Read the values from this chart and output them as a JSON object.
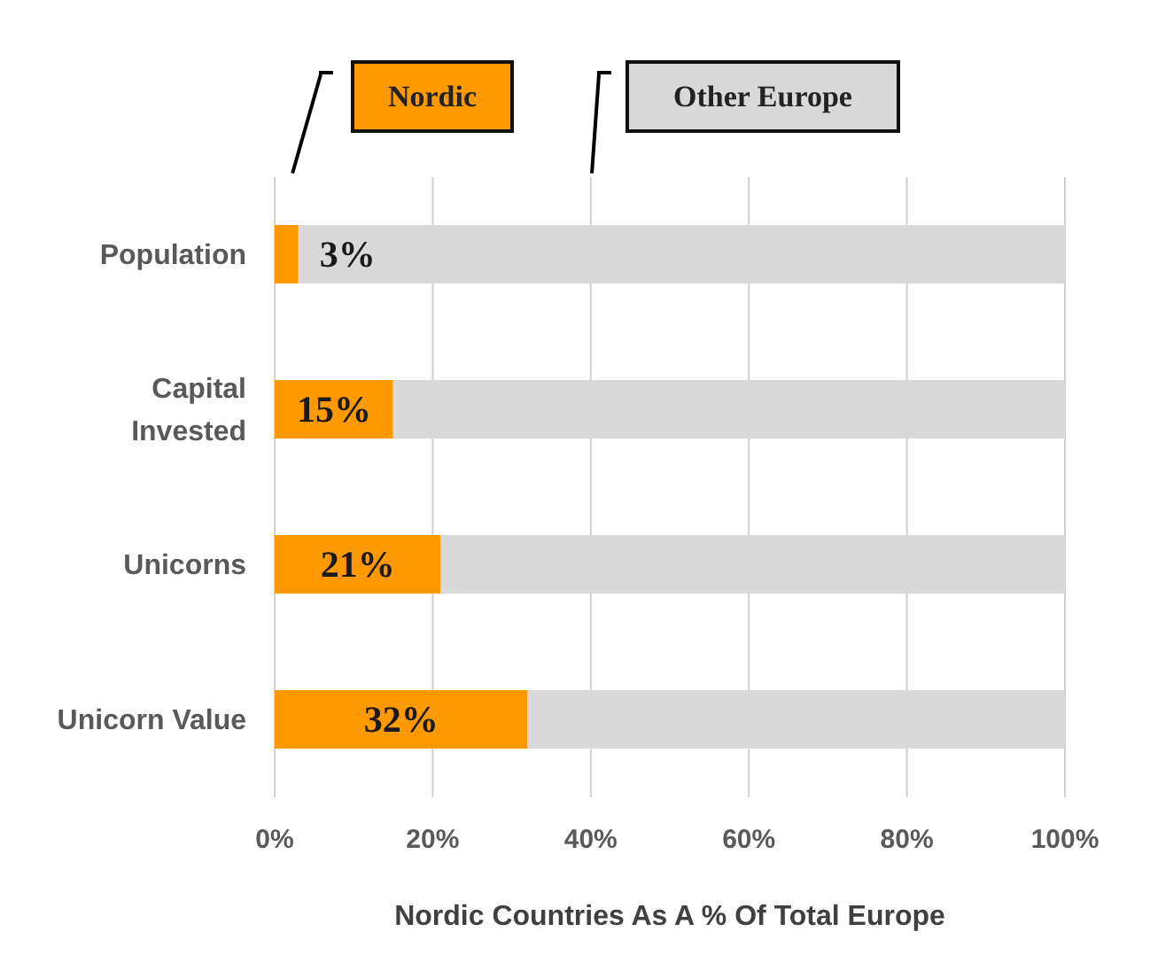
{
  "chart_data": {
    "type": "bar",
    "orientation": "horizontal",
    "stacked": true,
    "xlabel": "Nordic Countries As A % Of Total Europe",
    "categories": [
      "Population",
      "Capital Invested",
      "Unicorns",
      "Unicorn Value"
    ],
    "series": [
      {
        "name": "Nordic",
        "color": "#ff9900",
        "values": [
          3,
          15,
          21,
          32
        ],
        "value_labels": [
          "3%",
          "15%",
          "21%",
          "32%"
        ]
      },
      {
        "name": "Other Europe",
        "color": "#d9d9d9",
        "values": [
          97,
          85,
          79,
          68
        ]
      }
    ],
    "xlim": [
      0,
      100
    ],
    "xticks": [
      {
        "value": 0,
        "label": "0%"
      },
      {
        "value": 20,
        "label": "20%"
      },
      {
        "value": 40,
        "label": "40%"
      },
      {
        "value": 60,
        "label": "60%"
      },
      {
        "value": 80,
        "label": "80%"
      },
      {
        "value": 100,
        "label": "100%"
      }
    ],
    "grid": "x",
    "legend": "top"
  }
}
